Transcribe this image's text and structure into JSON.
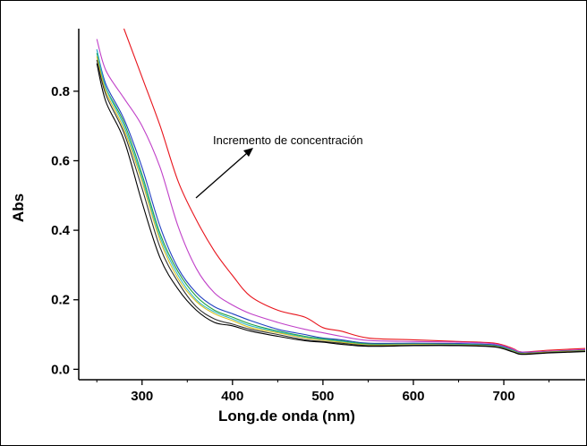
{
  "chart_data": {
    "type": "line",
    "title": "",
    "xlabel": "Long.de onda (nm)",
    "ylabel": "Abs",
    "xlim": [
      230,
      790
    ],
    "ylim": [
      -0.03,
      0.98
    ],
    "x_ticks": [
      300,
      400,
      500,
      600,
      700
    ],
    "x_tick_labels": [
      "300",
      "400",
      "500",
      "600",
      "700"
    ],
    "y_ticks": [
      0.0,
      0.2,
      0.4,
      0.6,
      0.8
    ],
    "y_tick_labels": [
      "0.0",
      "0.2",
      "0.4",
      "0.6",
      "0.8"
    ],
    "grid": false,
    "annotation": "Incremento de concentración",
    "x": [
      250,
      260,
      280,
      300,
      320,
      340,
      360,
      380,
      400,
      420,
      450,
      480,
      500,
      520,
      550,
      600,
      650,
      690,
      710,
      720,
      750,
      790
    ],
    "series": [
      {
        "color": "#e8141c",
        "values": [
          null,
          null,
          0.98,
          0.84,
          0.7,
          0.54,
          0.43,
          0.34,
          0.27,
          0.21,
          0.17,
          0.15,
          0.12,
          0.11,
          0.09,
          0.085,
          0.08,
          0.075,
          0.06,
          0.05,
          0.055,
          0.06
        ]
      },
      {
        "color": "#c040c8",
        "values": [
          0.95,
          0.86,
          0.78,
          0.7,
          0.58,
          0.41,
          0.29,
          0.22,
          0.185,
          0.16,
          0.135,
          0.115,
          0.105,
          0.095,
          0.083,
          0.08,
          0.078,
          0.073,
          0.058,
          0.05,
          0.052,
          0.057
        ]
      },
      {
        "color": "#2040c0",
        "values": [
          0.92,
          0.82,
          0.72,
          0.58,
          0.41,
          0.29,
          0.22,
          0.18,
          0.16,
          0.14,
          0.115,
          0.1,
          0.09,
          0.085,
          0.075,
          0.075,
          0.074,
          0.07,
          0.055,
          0.047,
          0.05,
          0.055
        ]
      },
      {
        "color": "#20a040",
        "values": [
          0.91,
          0.81,
          0.71,
          0.56,
          0.39,
          0.28,
          0.21,
          0.17,
          0.15,
          0.13,
          0.11,
          0.095,
          0.088,
          0.082,
          0.073,
          0.073,
          0.072,
          0.068,
          0.054,
          0.046,
          0.05,
          0.054
        ]
      },
      {
        "color": "#30b8c8",
        "values": [
          0.92,
          0.81,
          0.7,
          0.55,
          0.38,
          0.27,
          0.2,
          0.165,
          0.145,
          0.125,
          0.108,
          0.092,
          0.086,
          0.08,
          0.071,
          0.072,
          0.071,
          0.067,
          0.053,
          0.045,
          0.049,
          0.053
        ]
      },
      {
        "color": "#d8c020",
        "values": [
          0.9,
          0.8,
          0.69,
          0.54,
          0.37,
          0.26,
          0.195,
          0.16,
          0.14,
          0.12,
          0.105,
          0.09,
          0.084,
          0.078,
          0.07,
          0.071,
          0.07,
          0.066,
          0.052,
          0.045,
          0.049,
          0.053
        ]
      },
      {
        "color": "#303030",
        "values": [
          0.89,
          0.79,
          0.68,
          0.52,
          0.35,
          0.25,
          0.18,
          0.145,
          0.13,
          0.115,
          0.1,
          0.085,
          0.08,
          0.075,
          0.068,
          0.069,
          0.069,
          0.065,
          0.051,
          0.044,
          0.048,
          0.052
        ]
      },
      {
        "color": "#000000",
        "values": [
          0.88,
          0.77,
          0.66,
          0.48,
          0.32,
          0.23,
          0.17,
          0.135,
          0.125,
          0.11,
          0.095,
          0.082,
          0.078,
          0.072,
          0.066,
          0.068,
          0.068,
          0.064,
          0.05,
          0.043,
          0.047,
          0.051
        ]
      }
    ]
  }
}
